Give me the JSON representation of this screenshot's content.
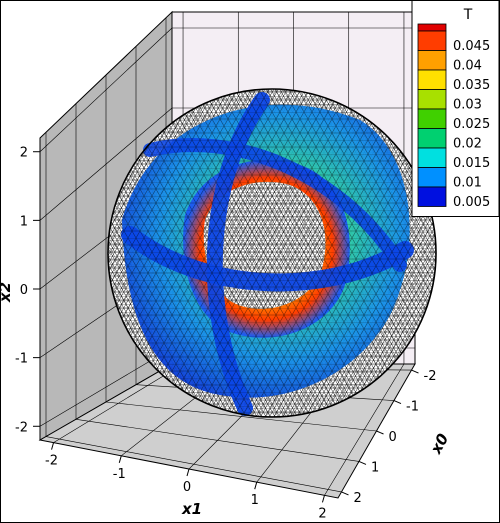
{
  "chart_data": {
    "type": "3d-surface-contour",
    "variable": "T",
    "axes": {
      "x0": {
        "label": "x0",
        "ticks": [
          "-2",
          "-1",
          "0",
          "1",
          "2"
        ],
        "range": [
          -2.2,
          2.2
        ]
      },
      "x1": {
        "label": "x1",
        "ticks": [
          "-2",
          "-1",
          "0",
          "1",
          "2"
        ],
        "range": [
          -2.2,
          2.2
        ]
      },
      "x2": {
        "label": "x2",
        "ticks": [
          "-2",
          "-1",
          "0",
          "1",
          "2"
        ],
        "range": [
          -2.2,
          2.2
        ]
      }
    },
    "legend": {
      "title": "T",
      "placement": "top-right",
      "levels": [
        {
          "value": "0.045",
          "color": "#ff3d00"
        },
        {
          "value": "0.04",
          "color": "#ffa000"
        },
        {
          "value": "0.035",
          "color": "#ffe000"
        },
        {
          "value": "0.03",
          "color": "#a8e000"
        },
        {
          "value": "0.025",
          "color": "#40d000"
        },
        {
          "value": "0.02",
          "color": "#00d070"
        },
        {
          "value": "0.015",
          "color": "#00e0e0"
        },
        {
          "value": "0.01",
          "color": "#0090ff"
        },
        {
          "value": "0.005",
          "color": "#0010e0"
        }
      ],
      "top_color": "#e00000"
    },
    "colors": {
      "pane": "#f4eef4",
      "wall": "#b8b8b8",
      "floor": "#cfcfcf",
      "mesh": "#000000"
    }
  }
}
